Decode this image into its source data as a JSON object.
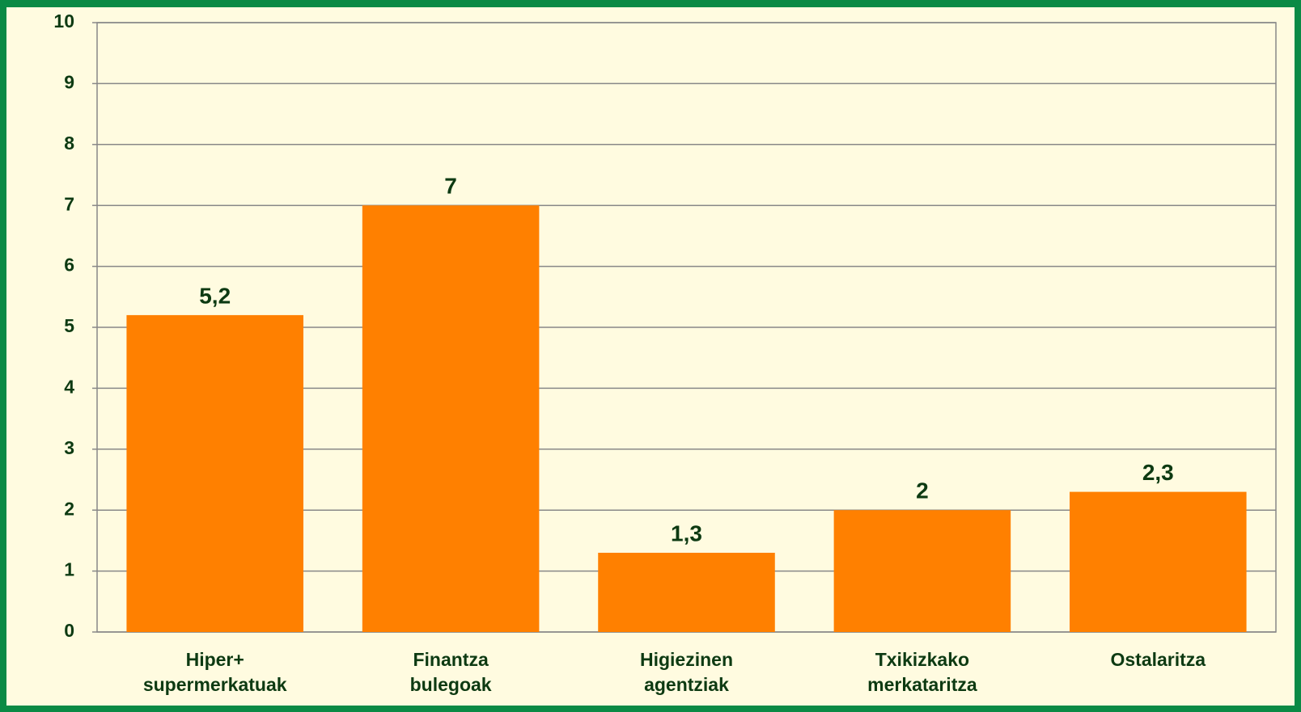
{
  "chart_data": {
    "type": "bar",
    "categories": [
      "Hiper+\nsupermerkatuak",
      "Finantza\nbulegoak",
      "Higiezinen\nagentziak",
      "Txikizkako\nmerkataritza",
      "Ostalaritza"
    ],
    "values": [
      5.2,
      7,
      1.3,
      2,
      2.3
    ],
    "value_labels": [
      "5,2",
      "7",
      "1,3",
      "2",
      "2,3"
    ],
    "color": "#ff8000",
    "ylim": [
      0,
      10
    ],
    "yticks": [
      0,
      1,
      2,
      3,
      4,
      5,
      6,
      7,
      8,
      9,
      10
    ],
    "grid": true
  }
}
